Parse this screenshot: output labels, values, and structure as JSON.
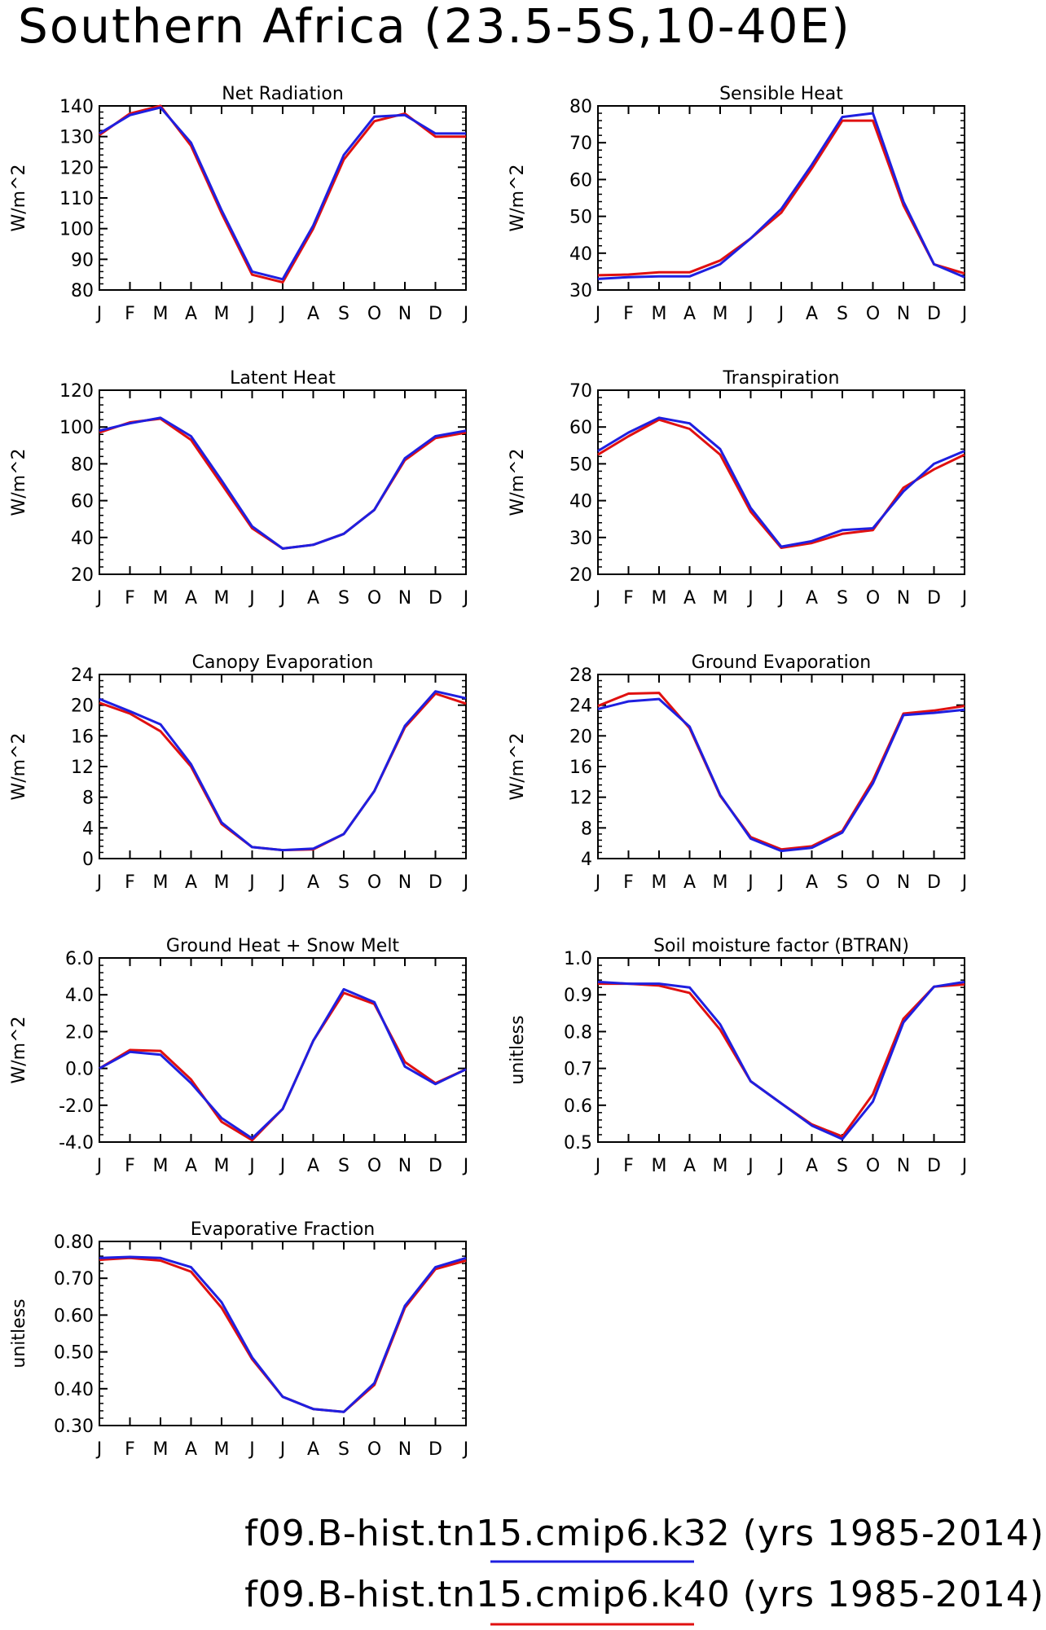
{
  "page_title": "Southern Africa (23.5-5S,10-40E)",
  "month_labels": [
    "J",
    "F",
    "M",
    "A",
    "M",
    "J",
    "J",
    "A",
    "S",
    "O",
    "N",
    "D",
    "J"
  ],
  "legend": {
    "entries": [
      {
        "label": "f09.B-hist.tn15.cmip6.k32 (yrs 1985-2014)",
        "color": "#1f1fe0"
      },
      {
        "label": "f09.B-hist.tn15.cmip6.k40 (yrs 1985-2014)",
        "color": "#e01010"
      }
    ]
  },
  "colors": {
    "k32": "#1f1fe0",
    "k40": "#e01010"
  },
  "chart_data": [
    {
      "type": "line",
      "title": "Net Radiation",
      "ylabel": "W/m^2",
      "ylim": [
        80,
        140
      ],
      "yticks": [
        "80",
        "90",
        "100",
        "110",
        "120",
        "130",
        "140"
      ],
      "x": [
        "J",
        "F",
        "M",
        "A",
        "M",
        "J",
        "J",
        "A",
        "S",
        "O",
        "N",
        "D",
        "J"
      ],
      "series": [
        {
          "name": "f09.B-hist.tn15.cmip6.k32",
          "color": "#1f1fe0",
          "values": [
            131,
            137,
            139.5,
            128,
            106,
            86,
            83.5,
            101,
            124,
            136.5,
            137,
            131,
            131
          ]
        },
        {
          "name": "f09.B-hist.tn15.cmip6.k40",
          "color": "#e01010",
          "values": [
            130.5,
            137.5,
            140,
            127,
            105,
            85,
            82.5,
            100,
            122.5,
            135,
            137.5,
            130,
            130
          ]
        }
      ]
    },
    {
      "type": "line",
      "title": "Sensible Heat",
      "ylabel": "W/m^2",
      "ylim": [
        30,
        80
      ],
      "yticks": [
        "30",
        "40",
        "50",
        "60",
        "70",
        "80"
      ],
      "x": [
        "J",
        "F",
        "M",
        "A",
        "M",
        "J",
        "J",
        "A",
        "S",
        "O",
        "N",
        "D",
        "J"
      ],
      "series": [
        {
          "name": "f09.B-hist.tn15.cmip6.k32",
          "color": "#1f1fe0",
          "values": [
            33,
            33.5,
            33.7,
            33.7,
            37,
            44,
            52,
            64,
            77,
            78,
            54,
            37,
            33.5
          ]
        },
        {
          "name": "f09.B-hist.tn15.cmip6.k40",
          "color": "#e01010",
          "values": [
            34,
            34.2,
            34.8,
            34.8,
            38,
            44,
            51,
            63,
            76,
            76,
            53,
            37,
            34.5
          ]
        }
      ]
    },
    {
      "type": "line",
      "title": "Latent Heat",
      "ylabel": "W/m^2",
      "ylim": [
        20,
        120
      ],
      "yticks": [
        "20",
        "40",
        "60",
        "80",
        "100",
        "120"
      ],
      "x": [
        "J",
        "F",
        "M",
        "A",
        "M",
        "J",
        "J",
        "A",
        "S",
        "O",
        "N",
        "D",
        "J"
      ],
      "series": [
        {
          "name": "f09.B-hist.tn15.cmip6.k32",
          "color": "#1f1fe0",
          "values": [
            98,
            102,
            105,
            95,
            71,
            46,
            34,
            36,
            42,
            55,
            83,
            95,
            98
          ]
        },
        {
          "name": "f09.B-hist.tn15.cmip6.k40",
          "color": "#e01010",
          "values": [
            97,
            102.5,
            104.5,
            93,
            69,
            45,
            34,
            36,
            42,
            55,
            82,
            94,
            97
          ]
        }
      ]
    },
    {
      "type": "line",
      "title": "Transpiration",
      "ylabel": "W/m^2",
      "ylim": [
        20,
        70
      ],
      "yticks": [
        "20",
        "30",
        "40",
        "50",
        "60",
        "70"
      ],
      "x": [
        "J",
        "F",
        "M",
        "A",
        "M",
        "J",
        "J",
        "A",
        "S",
        "O",
        "N",
        "D",
        "J"
      ],
      "series": [
        {
          "name": "f09.B-hist.tn15.cmip6.k32",
          "color": "#1f1fe0",
          "values": [
            53.5,
            58.5,
            62.5,
            61,
            54,
            38,
            27.5,
            29,
            32,
            32.5,
            42.5,
            50,
            53.5
          ]
        },
        {
          "name": "f09.B-hist.tn15.cmip6.k40",
          "color": "#e01010",
          "values": [
            52.5,
            57.5,
            62,
            59.5,
            52.5,
            37,
            27.2,
            28.5,
            31,
            32,
            43.5,
            48.5,
            52.5
          ]
        }
      ]
    },
    {
      "type": "line",
      "title": "Canopy Evaporation",
      "ylabel": "W/m^2",
      "ylim": [
        0,
        24
      ],
      "yticks": [
        "0",
        "4",
        "8",
        "12",
        "16",
        "20",
        "24"
      ],
      "x": [
        "J",
        "F",
        "M",
        "A",
        "M",
        "J",
        "J",
        "A",
        "S",
        "O",
        "N",
        "D",
        "J"
      ],
      "series": [
        {
          "name": "f09.B-hist.tn15.cmip6.k32",
          "color": "#1f1fe0",
          "values": [
            20.8,
            19.2,
            17.5,
            12.3,
            4.7,
            1.5,
            1.1,
            1.3,
            3.2,
            8.8,
            17.3,
            21.8,
            20.9
          ]
        },
        {
          "name": "f09.B-hist.tn15.cmip6.k40",
          "color": "#e01010",
          "values": [
            20.3,
            18.9,
            16.6,
            12,
            4.5,
            1.5,
            1.1,
            1.2,
            3.2,
            8.8,
            17.1,
            21.5,
            20.2
          ]
        }
      ]
    },
    {
      "type": "line",
      "title": "Ground Evaporation",
      "ylabel": "W/m^2",
      "ylim": [
        4,
        28
      ],
      "yticks": [
        "4",
        "8",
        "12",
        "16",
        "20",
        "24",
        "28"
      ],
      "x": [
        "J",
        "F",
        "M",
        "A",
        "M",
        "J",
        "J",
        "A",
        "S",
        "O",
        "N",
        "D",
        "J"
      ],
      "series": [
        {
          "name": "f09.B-hist.tn15.cmip6.k32",
          "color": "#1f1fe0",
          "values": [
            23.5,
            24.5,
            24.8,
            21.2,
            12.3,
            6.6,
            5.0,
            5.4,
            7.4,
            13.8,
            22.7,
            23.0,
            23.4
          ]
        },
        {
          "name": "f09.B-hist.tn15.cmip6.k40",
          "color": "#e01010",
          "values": [
            23.9,
            25.5,
            25.6,
            21.0,
            12.2,
            6.8,
            5.2,
            5.6,
            7.6,
            14.2,
            22.9,
            23.3,
            23.9
          ]
        }
      ]
    },
    {
      "type": "line",
      "title": "Ground Heat + Snow Melt",
      "ylabel": "W/m^2",
      "ylim": [
        -4,
        6
      ],
      "yticks": [
        "-4.0",
        "-2.0",
        "0.0",
        "2.0",
        "4.0",
        "6.0"
      ],
      "x": [
        "J",
        "F",
        "M",
        "A",
        "M",
        "J",
        "J",
        "A",
        "S",
        "O",
        "N",
        "D",
        "J"
      ],
      "series": [
        {
          "name": "f09.B-hist.tn15.cmip6.k32",
          "color": "#1f1fe0",
          "values": [
            0,
            0.9,
            0.75,
            -0.8,
            -2.7,
            -3.8,
            -2.2,
            1.5,
            4.3,
            3.6,
            0.1,
            -0.85,
            -0.05
          ]
        },
        {
          "name": "f09.B-hist.tn15.cmip6.k40",
          "color": "#e01010",
          "values": [
            0,
            1.0,
            0.95,
            -0.6,
            -2.9,
            -3.9,
            -2.2,
            1.5,
            4.1,
            3.5,
            0.35,
            -0.8,
            -0.05
          ]
        }
      ]
    },
    {
      "type": "line",
      "title": "Soil moisture factor (BTRAN)",
      "ylabel": "unitless",
      "ylim": [
        0.5,
        1.0
      ],
      "yticks": [
        "0.5",
        "0.6",
        "0.7",
        "0.8",
        "0.9",
        "1.0"
      ],
      "x": [
        "J",
        "F",
        "M",
        "A",
        "M",
        "J",
        "J",
        "A",
        "S",
        "O",
        "N",
        "D",
        "J"
      ],
      "series": [
        {
          "name": "f09.B-hist.tn15.cmip6.k32",
          "color": "#1f1fe0",
          "values": [
            0.935,
            0.93,
            0.93,
            0.92,
            0.82,
            0.665,
            0.605,
            0.545,
            0.508,
            0.61,
            0.825,
            0.922,
            0.935
          ]
        },
        {
          "name": "f09.B-hist.tn15.cmip6.k40",
          "color": "#e01010",
          "values": [
            0.93,
            0.93,
            0.925,
            0.905,
            0.805,
            0.665,
            0.605,
            0.548,
            0.515,
            0.63,
            0.835,
            0.922,
            0.928
          ]
        }
      ]
    },
    {
      "type": "line",
      "title": "Evaporative Fraction",
      "ylabel": "unitless",
      "ylim": [
        0.3,
        0.8
      ],
      "yticks": [
        "0.30",
        "0.40",
        "0.50",
        "0.60",
        "0.70",
        "0.80"
      ],
      "x": [
        "J",
        "F",
        "M",
        "A",
        "M",
        "J",
        "J",
        "A",
        "S",
        "O",
        "N",
        "D",
        "J"
      ],
      "series": [
        {
          "name": "f09.B-hist.tn15.cmip6.k32",
          "color": "#1f1fe0",
          "values": [
            0.755,
            0.758,
            0.755,
            0.73,
            0.635,
            0.485,
            0.378,
            0.345,
            0.337,
            0.415,
            0.625,
            0.73,
            0.755
          ]
        },
        {
          "name": "f09.B-hist.tn15.cmip6.k40",
          "color": "#e01010",
          "values": [
            0.75,
            0.755,
            0.748,
            0.718,
            0.62,
            0.48,
            0.378,
            0.345,
            0.337,
            0.41,
            0.62,
            0.725,
            0.748
          ]
        }
      ]
    }
  ]
}
